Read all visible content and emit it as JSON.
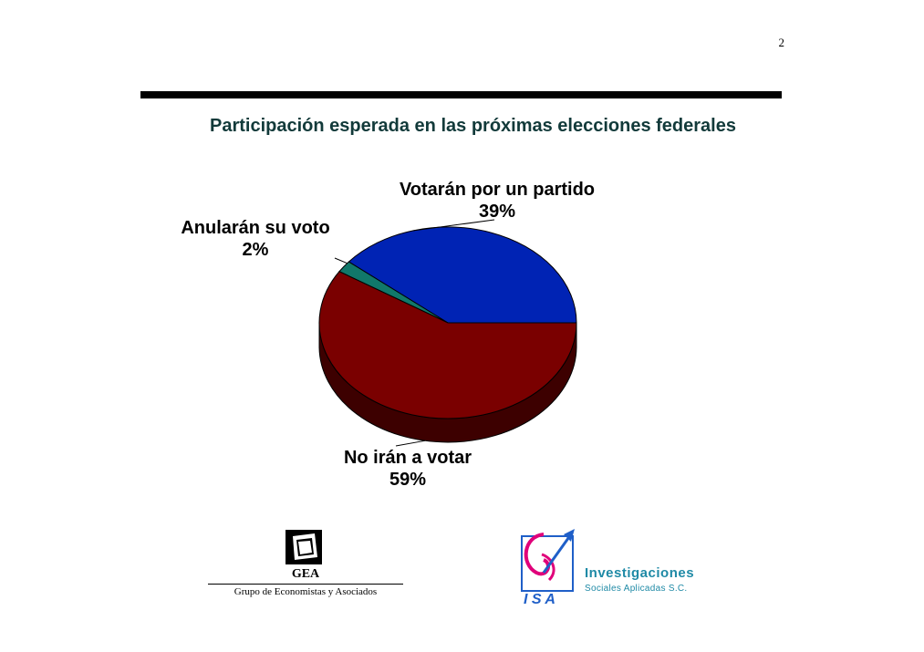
{
  "page": {
    "number": "2"
  },
  "chart_data": {
    "type": "pie",
    "title": "Participación esperada en las próximas elecciones federales",
    "slices": [
      {
        "label": "Votarán por un partido",
        "value": 39,
        "value_label": "39%",
        "color": "#0023b4",
        "side_color": "#00125a"
      },
      {
        "label": "Anularán su voto",
        "value": 2,
        "value_label": "2%",
        "color": "#11786a",
        "side_color": "#083c35"
      },
      {
        "label": "No irán a votar",
        "value": 59,
        "value_label": "59%",
        "color": "#7a0000",
        "side_color": "#3d0000"
      }
    ]
  },
  "footer": {
    "gea": {
      "name": "GEA",
      "subtitle": "Grupo de Economistas y Asociados"
    },
    "isa": {
      "letters": "I S A",
      "name": "Investigaciones",
      "subtitle": "Sociales Aplicadas S.C."
    }
  }
}
